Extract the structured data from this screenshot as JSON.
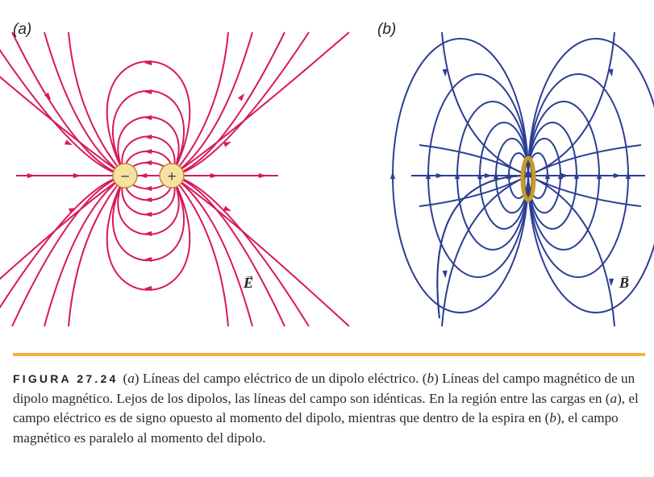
{
  "panels": {
    "a": {
      "label": "(a)",
      "field_symbol": "E",
      "color": "#d8185a",
      "charges": [
        "−",
        "+"
      ]
    },
    "b": {
      "label": "(b)",
      "field_symbol": "B",
      "color": "#2b3f93"
    }
  },
  "caption": {
    "figure_heading": "FIGURA 27.24",
    "a": "a",
    "b": "b",
    "t1": ") Líneas del campo eléctrico de un dipolo eléctrico. (",
    "t2": ") Líneas del campo magnético de un dipolo magnético. Lejos de los dipolos, las líneas del campo son idénticas. En la región entre las cargas en (",
    "t3": "), el campo eléctrico es de signo opuesto al momento del dipolo, mientras que dentro de la espira en (",
    "t4": "), el campo magnético es paralelo al momento del dipolo."
  },
  "colors": {
    "rule": "#f0b43c",
    "charge_fill": "#f5e2a3",
    "loop": "#c99a2e"
  }
}
